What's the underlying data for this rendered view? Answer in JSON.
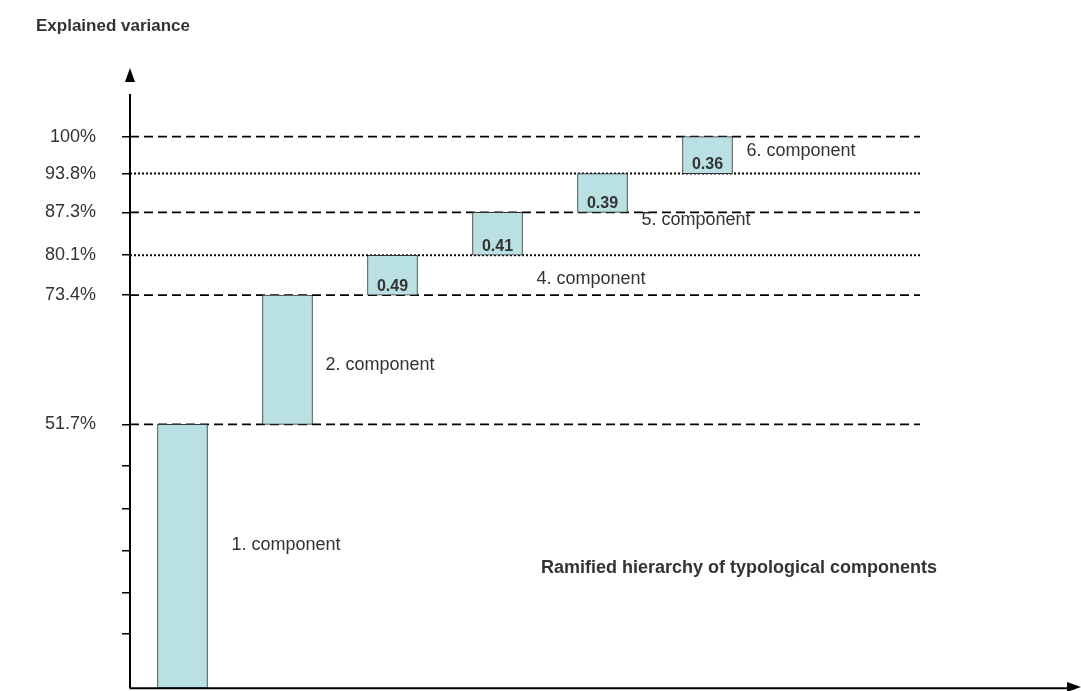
{
  "chart_data": {
    "type": "bar",
    "title": "Explained variance",
    "categories": [
      null,
      null,
      null,
      null,
      null,
      null
    ],
    "values": [
      44.3,
      21.7,
      6.7,
      7.2,
      6.5,
      6.2
    ],
    "base": [
      7.4,
      51.7,
      73.4,
      80.1,
      87.3,
      93.8
    ],
    "color": "#b9e0e3",
    "ylim": [
      7.4,
      107
    ],
    "yticks": [
      {
        "value": 16.5,
        "label": null
      },
      {
        "value": 23.5,
        "label": null
      },
      {
        "value": 30.5,
        "label": null
      },
      {
        "value": 37.6,
        "label": null
      },
      {
        "value": 44.7,
        "label": null
      },
      {
        "value": 51.7,
        "label": "51.7%"
      },
      {
        "value": 73.4,
        "label": "73.4%"
      },
      {
        "value": 80.1,
        "label": "80.1%"
      },
      {
        "value": 87.3,
        "label": "87.3%"
      },
      {
        "value": 93.8,
        "label": "93.8%"
      },
      {
        "value": 100,
        "label": "100%"
      }
    ],
    "ref_lines": [
      {
        "axis": "y",
        "value": 51.7,
        "line_style": "dashed",
        "color": "#000000"
      },
      {
        "axis": "y",
        "value": 73.4,
        "line_style": "dashed",
        "color": "#000000"
      },
      {
        "axis": "y",
        "value": 80.1,
        "line_style": "dotted",
        "color": "#000000"
      },
      {
        "axis": "y",
        "value": 87.3,
        "line_style": "dashed",
        "color": "#000000"
      },
      {
        "axis": "y",
        "value": 93.8,
        "line_style": "dotted",
        "color": "#000000"
      },
      {
        "axis": "y",
        "value": 100,
        "line_style": "dashed",
        "color": "#000000"
      }
    ],
    "annotations": [
      "1. component",
      "2. component",
      "4. component",
      "5. component",
      "6. component",
      "Ramified hierarchy of typological components",
      "0.49",
      "0.41",
      "0.39",
      "0.36"
    ],
    "grid": false,
    "legend": false,
    "tick_labels": "y"
  }
}
